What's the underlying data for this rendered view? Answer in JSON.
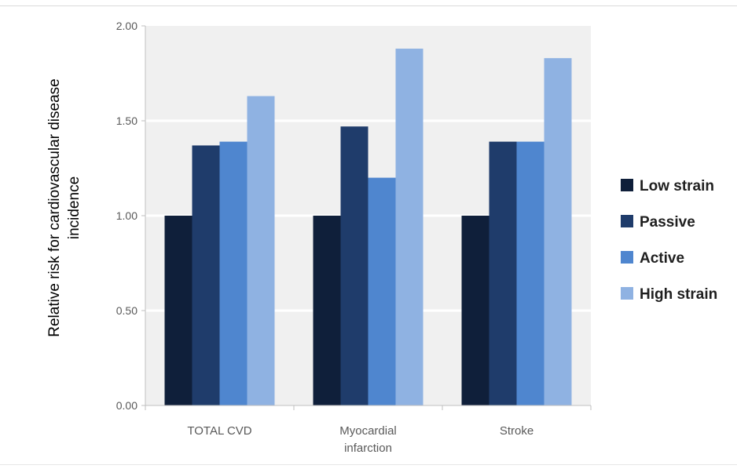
{
  "chart_data": {
    "type": "bar",
    "title": "",
    "xlabel": "",
    "ylabel": "Relative risk for cardiovascular disease incidence",
    "ylabel_lines": [
      "Relative risk for cardiovascular  disease",
      "incidence"
    ],
    "ylim": [
      0,
      2.0
    ],
    "yticks": [
      "0.00",
      "0.50",
      "1.00",
      "1.50",
      "2.00"
    ],
    "ytick_values": [
      0,
      0.5,
      1.0,
      1.5,
      2.0
    ],
    "categories": [
      "TOTAL CVD",
      "Myocardial infarction",
      "Stroke"
    ],
    "category_lines": [
      [
        "TOTAL CVD"
      ],
      [
        "Myocardial",
        "infarction"
      ],
      [
        "Stroke"
      ]
    ],
    "series": [
      {
        "name": "Low strain",
        "color": "#0f1f3a",
        "values": [
          1.0,
          1.0,
          1.0
        ]
      },
      {
        "name": "Passive",
        "color": "#1f3c6b",
        "values": [
          1.37,
          1.47,
          1.39
        ]
      },
      {
        "name": "Active",
        "color": "#4f86cf",
        "values": [
          1.39,
          1.2,
          1.39
        ]
      },
      {
        "name": "High strain",
        "color": "#8fb2e2",
        "values": [
          1.63,
          1.88,
          1.83
        ]
      }
    ],
    "grid": true,
    "legend_position": "right",
    "plot_background": "#f0f0f0"
  }
}
